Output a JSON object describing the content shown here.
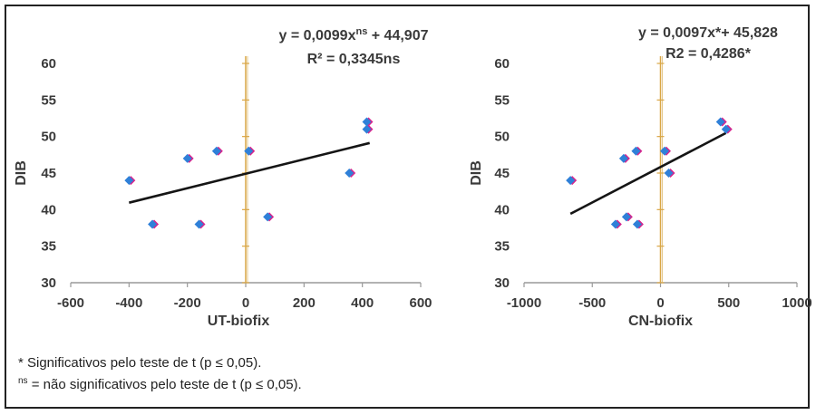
{
  "chart_data": [
    {
      "type": "scatter",
      "xlabel": "UT-biofix",
      "ylabel": "DIB",
      "xlim": [
        -600,
        600
      ],
      "ylim": [
        30,
        60
      ],
      "xticks": [
        "-600",
        "-400",
        "-200",
        "0",
        "200",
        "400",
        "600"
      ],
      "yticks": [
        "30",
        "35",
        "40",
        "45",
        "50",
        "55",
        "60"
      ],
      "equation": "y = 0,0099x",
      "equation_sup": "ns",
      "equation_rest": " + 44,907",
      "r2": "R² = 0,3345ns",
      "points": [
        {
          "x": -400,
          "y": 44
        },
        {
          "x": -320,
          "y": 38
        },
        {
          "x": -200,
          "y": 47
        },
        {
          "x": -160,
          "y": 38
        },
        {
          "x": -100,
          "y": 48
        },
        {
          "x": 10,
          "y": 48
        },
        {
          "x": 75,
          "y": 39
        },
        {
          "x": 355,
          "y": 45
        },
        {
          "x": 415,
          "y": 52
        },
        {
          "x": 415,
          "y": 51
        }
      ],
      "trendline": {
        "slope": 0.0099,
        "intercept": 44.907,
        "x_range": [
          -400,
          425
        ]
      }
    },
    {
      "type": "scatter",
      "xlabel": "CN-biofix",
      "ylabel": "DIB",
      "xlim": [
        -1000,
        1000
      ],
      "ylim": [
        30,
        60
      ],
      "xticks": [
        "-1000",
        "-500",
        "0",
        "500",
        "1000"
      ],
      "yticks": [
        "30",
        "35",
        "40",
        "45",
        "50",
        "55",
        "60"
      ],
      "equation": "y = 0,0097x*+ 45,828",
      "r2": "R2 = 0,4286*",
      "points": [
        {
          "x": -660,
          "y": 44
        },
        {
          "x": -330,
          "y": 38
        },
        {
          "x": -270,
          "y": 47
        },
        {
          "x": -250,
          "y": 39
        },
        {
          "x": -180,
          "y": 48
        },
        {
          "x": -170,
          "y": 38
        },
        {
          "x": 30,
          "y": 48
        },
        {
          "x": 60,
          "y": 45
        },
        {
          "x": 440,
          "y": 52
        },
        {
          "x": 480,
          "y": 51
        }
      ],
      "trendline": {
        "slope": 0.0097,
        "intercept": 45.828,
        "x_range": [
          -660,
          480
        ]
      }
    }
  ],
  "footnotes": {
    "sig": "*  Significativos pelo teste de t (p ≤ 0,05).",
    "ns_mark": "ns",
    "ns_text": " = não significativos pelo teste de t (p ≤ 0,05)."
  },
  "colors": {
    "marker_blue": "#2f80d8",
    "marker_magenta": "#d8238c",
    "trend": "#151515",
    "axis_v": "#d9a645",
    "text": "#3a3a3a"
  }
}
